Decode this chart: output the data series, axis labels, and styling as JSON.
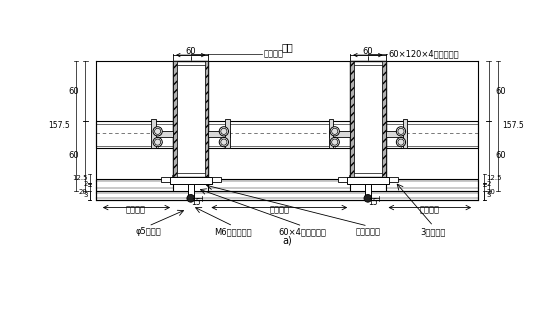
{
  "bg_color": "#ffffff",
  "line_color": "#000000",
  "top_label": "室内",
  "ann_lian_jie": "连接角码",
  "ann_fang_guan": "60×120×4镀锌钉方管",
  "ann_phi5": "φ5拉铆钉",
  "ann_M6": "M6不锈钉螺栓",
  "ann_60x4": "60×4镀锌钉方管",
  "ann_lv": "铝合金副框",
  "ann_3hou": "3厚铝单板",
  "ann_fen_ge": "分格尺寸",
  "title": "a)"
}
